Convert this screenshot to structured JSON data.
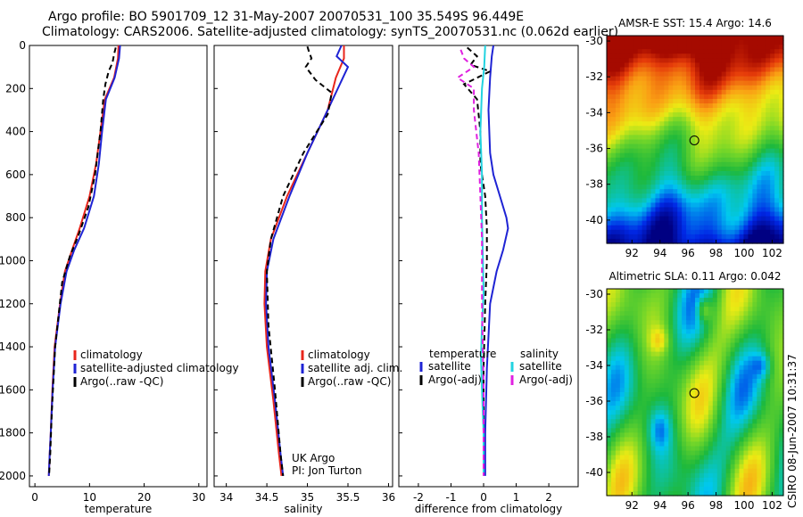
{
  "header": {
    "line1": "Argo profile: BO 5901709_12 31-May-2007 20070531_100 35.549S 96.449E",
    "line2": "Climatology: CARS2006. Satellite-adjusted climatology: synTS_20070531.nc (0.062d earlier)"
  },
  "footer_text": "CSIRO 08-Jun-2007 10:31:37",
  "colors": {
    "climatology": "#e8261c",
    "satellite": "#1e23d4",
    "argo": "#000000",
    "sal_satellite": "#22d3e0",
    "sal_argo": "#e020e0"
  },
  "chart_data": [
    {
      "type": "line",
      "xlabel": "temperature",
      "ylim": [
        0,
        2050
      ],
      "yticks": [
        0,
        200,
        400,
        600,
        800,
        1000,
        1200,
        1400,
        1600,
        1800,
        2000
      ],
      "xlim": [
        -1,
        31.5
      ],
      "xticks": [
        0,
        10,
        20,
        30
      ],
      "legend": [
        "climatology",
        "satellite-adjusted climatology",
        "Argo(..raw -QC)"
      ],
      "series": [
        {
          "name": "climatology",
          "style": "solid",
          "color": "climatology",
          "x": [
            15.3,
            15.2,
            14.5,
            12.8,
            12.0,
            11.2,
            10.0,
            8.2,
            6.8,
            5.5,
            4.6,
            3.6,
            3.2,
            2.9,
            2.7,
            2.55
          ],
          "y": [
            0,
            60,
            150,
            250,
            400,
            550,
            700,
            850,
            950,
            1050,
            1200,
            1400,
            1600,
            1800,
            1900,
            2000
          ]
        },
        {
          "name": "satellite-adjusted climatology",
          "style": "solid",
          "color": "satellite",
          "x": [
            15.6,
            15.4,
            14.6,
            13.0,
            12.3,
            11.7,
            10.8,
            9.0,
            7.2,
            5.8,
            4.7,
            3.7,
            3.25,
            2.9,
            2.7,
            2.55
          ],
          "y": [
            0,
            60,
            150,
            250,
            400,
            550,
            700,
            850,
            950,
            1050,
            1200,
            1400,
            1600,
            1800,
            1900,
            2000
          ]
        },
        {
          "name": "Argo(..raw -QC)",
          "style": "dashed",
          "color": "argo",
          "x": [
            14.8,
            14.5,
            14.2,
            13.5,
            12.9,
            12.5,
            12.0,
            11.0,
            9.8,
            8.0,
            6.4,
            5.0,
            3.7,
            3.1,
            2.8,
            2.6
          ],
          "y": [
            10,
            40,
            80,
            120,
            180,
            250,
            400,
            600,
            750,
            880,
            980,
            1100,
            1400,
            1700,
            1900,
            2000
          ]
        }
      ]
    },
    {
      "type": "line",
      "xlabel": "salinity",
      "ylim": [
        0,
        2050
      ],
      "xlim": [
        33.85,
        36.05
      ],
      "xticks": [
        34,
        34.5,
        35,
        35.5,
        36
      ],
      "legend": [
        "climatology",
        "satellite adj. clim.",
        "Argo(..raw -QC)"
      ],
      "annotations": [
        "UK Argo",
        "PI: Jon Turton"
      ],
      "series": [
        {
          "name": "climatology",
          "style": "solid",
          "color": "climatology",
          "x": [
            35.45,
            35.45,
            35.35,
            35.25,
            35.0,
            34.75,
            34.55,
            34.48,
            34.47,
            34.5,
            34.58,
            34.65,
            34.68
          ],
          "y": [
            0,
            60,
            150,
            300,
            500,
            700,
            900,
            1050,
            1200,
            1400,
            1650,
            1900,
            2000
          ]
        },
        {
          "name": "satellite adj. clim.",
          "style": "solid",
          "color": "satellite",
          "x": [
            35.42,
            35.36,
            35.5,
            35.4,
            35.25,
            35.0,
            34.78,
            34.58,
            34.5,
            34.49,
            34.52,
            34.6,
            34.67,
            34.7
          ],
          "y": [
            0,
            50,
            100,
            180,
            300,
            500,
            700,
            900,
            1050,
            1200,
            1400,
            1650,
            1900,
            2000
          ]
        },
        {
          "name": "Argo(..raw -QC)",
          "style": "dashed",
          "color": "argo",
          "x": [
            35.0,
            35.02,
            35.05,
            34.98,
            35.1,
            35.3,
            35.25,
            34.95,
            34.7,
            34.55,
            34.5,
            34.52,
            34.6,
            34.67,
            34.7
          ],
          "y": [
            5,
            30,
            60,
            100,
            160,
            220,
            320,
            500,
            700,
            900,
            1050,
            1300,
            1600,
            1900,
            2000
          ]
        }
      ]
    },
    {
      "type": "line",
      "xlabel": "difference from climatology",
      "ylim": [
        0,
        2050
      ],
      "xlim": [
        -2.6,
        2.9
      ],
      "xticks": [
        -2,
        -1,
        0,
        1,
        2
      ],
      "legend_groups": [
        {
          "title": "temperature",
          "items": [
            "satellite",
            "Argo(-adj)"
          ]
        },
        {
          "title": "salinity",
          "items": [
            "satellite",
            "Argo(-adj)"
          ]
        }
      ],
      "series": [
        {
          "name": "temperature satellite",
          "style": "solid",
          "color": "satellite",
          "x": [
            0.3,
            0.25,
            0.2,
            0.15,
            0.2,
            0.3,
            0.5,
            0.7,
            0.75,
            0.6,
            0.4,
            0.2,
            0.1,
            0.05,
            0.05
          ],
          "y": [
            0,
            50,
            150,
            300,
            500,
            600,
            700,
            800,
            850,
            950,
            1050,
            1200,
            1500,
            1800,
            2000
          ]
        },
        {
          "name": "temperature Argo(-adj)",
          "style": "dashed",
          "color": "argo",
          "x": [
            -0.5,
            -0.2,
            -0.4,
            0.2,
            -0.6,
            -0.2,
            -0.1,
            -0.1,
            0.05,
            0.1,
            0.1,
            0.05,
            0.0,
            0.0
          ],
          "y": [
            10,
            50,
            90,
            120,
            180,
            250,
            400,
            550,
            700,
            850,
            1000,
            1200,
            1500,
            2000
          ]
        },
        {
          "name": "salinity satellite",
          "style": "solid",
          "color": "sal_satellite",
          "x": [
            0.05,
            0.02,
            -0.05,
            -0.1,
            -0.05,
            -0.05,
            -0.02,
            0.0,
            -0.05,
            -0.08,
            -0.05,
            0.0,
            0.0
          ],
          "y": [
            0,
            100,
            200,
            400,
            600,
            800,
            1000,
            1150,
            1300,
            1450,
            1600,
            1800,
            2000
          ]
        },
        {
          "name": "salinity Argo(-adj)",
          "style": "dashed",
          "color": "sal_argo",
          "x": [
            -0.7,
            -0.6,
            -0.3,
            -0.8,
            -0.3,
            -0.3,
            -0.15,
            -0.1,
            -0.05,
            -0.05,
            0.0,
            0.0
          ],
          "y": [
            20,
            60,
            100,
            150,
            200,
            300,
            500,
            700,
            900,
            1200,
            1600,
            2000
          ]
        }
      ]
    },
    {
      "type": "heatmap",
      "title": "AMSR-E SST: 15.4 Argo: 14.6",
      "xticks": [
        92,
        94,
        96,
        98,
        100,
        102
      ],
      "yticks": [
        -30,
        -32,
        -34,
        -36,
        -38,
        -40
      ],
      "xlim": [
        90.2,
        102.8
      ],
      "ylim": [
        -41.3,
        -29.7
      ],
      "marker": {
        "x": 96.449,
        "y": -35.549
      }
    },
    {
      "type": "heatmap",
      "title": "Altimetric SLA: 0.11 Argo: 0.042",
      "xticks": [
        92,
        94,
        96,
        98,
        100,
        102
      ],
      "yticks": [
        -30,
        -32,
        -34,
        -36,
        -38,
        -40
      ],
      "xlim": [
        90.2,
        102.8
      ],
      "ylim": [
        -41.3,
        -29.7
      ],
      "marker": {
        "x": 96.449,
        "y": -35.549
      }
    }
  ]
}
